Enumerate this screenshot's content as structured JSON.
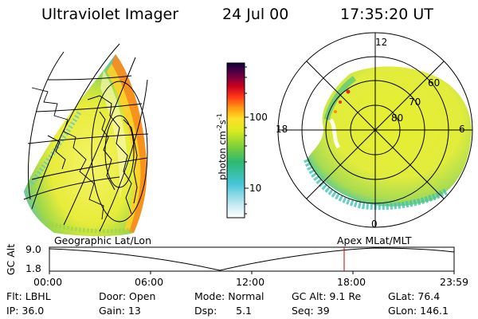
{
  "header": {
    "instrument": "Ultraviolet Imager",
    "date": "24 Jul 00",
    "time": "17:35:20 UT"
  },
  "colorbar": {
    "label": "photon cm",
    "label_exp1": "-2",
    "label_mid": "s",
    "label_exp2": "-1",
    "ticks": [
      "100",
      "10"
    ]
  },
  "polar_plot": {
    "mlt_labels": [
      "12",
      "18",
      "6",
      "0"
    ],
    "lat_labels": [
      "60",
      "70",
      "80"
    ]
  },
  "projections": {
    "left_label": "Geographic Lat/Lon",
    "right_label": "Apex MLat/MLT"
  },
  "altitude_plot": {
    "ylabel": "GC Alt",
    "yticks": [
      "9.0",
      "1.8"
    ],
    "xticks": [
      "00:00",
      "06:00",
      "12:00",
      "18:00",
      "23:59"
    ],
    "marker_color": "#cc0000"
  },
  "info": {
    "rows": [
      [
        "Flt: LBHL",
        "Door: Open",
        "Mode: Normal",
        "GC Alt: 9.1 Re",
        "GLat: 76.4"
      ],
      [
        "IP: 36.0",
        "Gain: 13",
        "Dsp:      5.1",
        "Seq: 39",
        "GLon: 146.1"
      ]
    ]
  }
}
